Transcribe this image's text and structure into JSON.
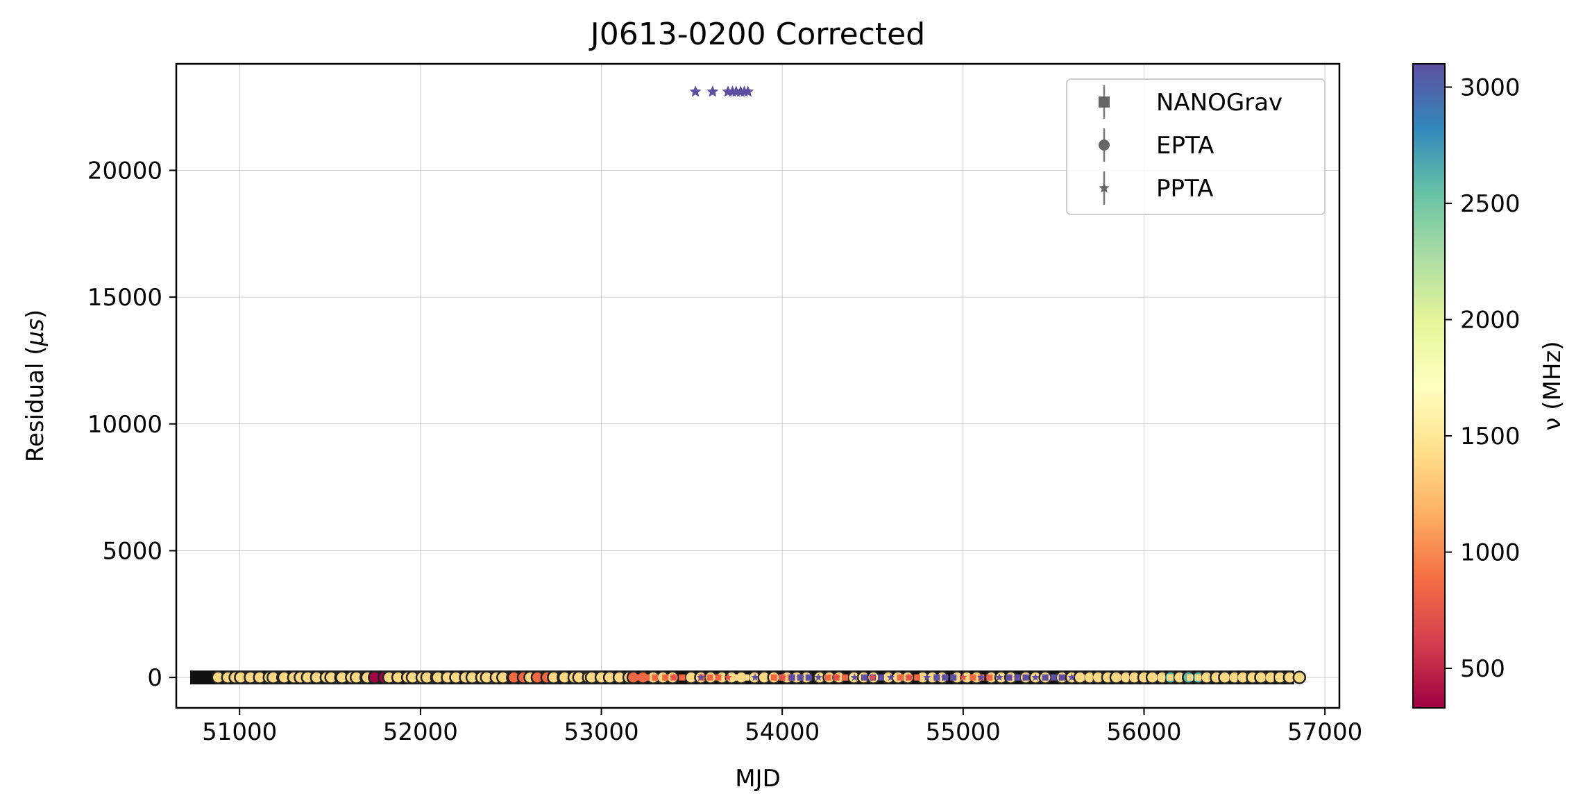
{
  "chart_data": {
    "type": "scatter",
    "title": "J0613-0200 Corrected",
    "xlabel": "MJD",
    "ylabel_prefix": "Residual (",
    "ylabel_mu": "μs",
    "ylabel_suffix": ")",
    "xlim": [
      50650,
      57080
    ],
    "ylim": [
      -1200,
      24200
    ],
    "xticks": [
      51000,
      52000,
      53000,
      54000,
      55000,
      56000,
      57000
    ],
    "yticks": [
      0,
      5000,
      10000,
      15000,
      20000
    ],
    "grid": true,
    "legend_position": "top-right",
    "legend": [
      {
        "label": "NANOGrav",
        "marker": "square"
      },
      {
        "label": "EPTA",
        "marker": "circle"
      },
      {
        "label": "PPTA",
        "marker": "star"
      }
    ],
    "colorbar": {
      "label": "ν (MHz)",
      "colormap": "Spectral",
      "range": [
        330,
        3100
      ],
      "ticks": [
        500,
        1000,
        1500,
        2000,
        2500,
        3000
      ]
    },
    "series": [
      {
        "name": "PPTA",
        "marker": "star",
        "x": [
          53520,
          53615,
          53700,
          53725,
          53745,
          53770,
          53790,
          53810
        ],
        "y": [
          23100,
          23100,
          23100,
          23100,
          23100,
          23100,
          23100,
          23100
        ],
        "freq_mhz": [
          3100,
          3100,
          3100,
          3100,
          3100,
          3100,
          3100,
          3100
        ]
      },
      {
        "name": "EPTA",
        "marker": "circle",
        "x": [
          50935,
          51030,
          51060,
          51165,
          51240,
          51300,
          51390,
          51430,
          51480,
          51560,
          51620,
          51700,
          51760,
          51800,
          51880,
          51930,
          52010,
          52090,
          52150,
          52250,
          52340,
          52420,
          52510,
          52570,
          52660,
          52700,
          52790,
          52850,
          52930,
          53000,
          53100,
          53230,
          53340,
          53550,
          53720,
          53900,
          54080,
          54260,
          54450,
          54640,
          54830,
          55020,
          55210,
          55400,
          55600,
          55700,
          55800,
          55900,
          56000,
          56100,
          56200,
          56250,
          56300,
          56400,
          56500,
          56600,
          56700,
          56805
        ],
        "y": [
          0,
          0,
          0,
          0,
          0,
          0,
          0,
          0,
          0,
          0,
          0,
          0,
          0,
          0,
          0,
          0,
          0,
          0,
          0,
          0,
          0,
          0,
          0,
          0,
          0,
          0,
          0,
          0,
          0,
          0,
          0,
          0,
          0,
          0,
          0,
          0,
          0,
          0,
          0,
          0,
          0,
          0,
          0,
          0,
          0,
          0,
          0,
          0,
          0,
          0,
          0,
          0,
          0,
          0,
          0,
          0,
          0,
          0
        ],
        "freq_mhz": [
          1400,
          1400,
          1400,
          1400,
          1400,
          1400,
          1400,
          1400,
          1400,
          1400,
          1400,
          1400,
          1400,
          350,
          1400,
          1400,
          1400,
          1400,
          1400,
          1400,
          1400,
          1400,
          1400,
          850,
          1400,
          850,
          1400,
          1400,
          1400,
          1400,
          1400,
          850,
          1400,
          1400,
          1400,
          1400,
          1400,
          1400,
          1400,
          1400,
          1400,
          1400,
          1400,
          1400,
          1400,
          1400,
          1400,
          1400,
          1400,
          1400,
          2600,
          1400,
          2600,
          1400,
          1400,
          1400,
          1400,
          1400
        ]
      },
      {
        "name": "NANOGrav",
        "marker": "square",
        "x": [
          53250,
          53400,
          53600,
          53800,
          54000,
          54100,
          54300,
          54500,
          54700,
          54900,
          55100,
          55300,
          55500,
          55700,
          55900,
          56100,
          56300,
          56500,
          56700
        ],
        "y": [
          0,
          0,
          0,
          0,
          0,
          0,
          0,
          0,
          0,
          0,
          0,
          0,
          0,
          0,
          0,
          0,
          0,
          0,
          0
        ],
        "freq_mhz": [
          850,
          850,
          850,
          1400,
          850,
          3100,
          850,
          3100,
          850,
          3100,
          850,
          3100,
          3100,
          1400,
          1400,
          1400,
          1400,
          1400,
          1400
        ]
      },
      {
        "name": "PPTA",
        "marker": "star",
        "x": [
          53400,
          53550,
          53700,
          53850,
          54000,
          54100,
          54200,
          54300,
          54400,
          54500,
          54600,
          54700,
          54800,
          54900,
          55000,
          55100,
          55200,
          55300,
          55400,
          55500,
          55600
        ],
        "y": [
          0,
          0,
          0,
          0,
          0,
          0,
          0,
          0,
          0,
          0,
          0,
          0,
          0,
          0,
          0,
          0,
          0,
          0,
          0,
          0,
          0
        ],
        "freq_mhz": [
          700,
          3100,
          700,
          3100,
          700,
          3100,
          3100,
          700,
          3100,
          700,
          3100,
          700,
          3100,
          3100,
          700,
          3100,
          3100,
          3100,
          3100,
          3100,
          3100
        ]
      }
    ]
  }
}
